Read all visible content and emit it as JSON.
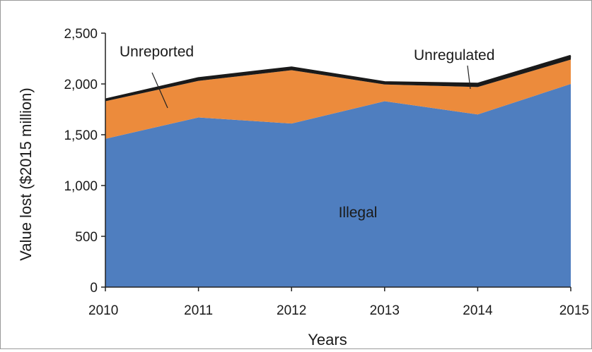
{
  "chart_data": {
    "type": "area",
    "stacked": true,
    "x": [
      2010,
      2011,
      2012,
      2013,
      2014,
      2015
    ],
    "series": [
      {
        "name": "Illegal",
        "color": "#4f7ebf",
        "values": [
          1460,
          1670,
          1610,
          1830,
          1700,
          2000
        ]
      },
      {
        "name": "Unreported",
        "color": "#ec8b3c",
        "values": [
          370,
          360,
          525,
          165,
          270,
          240
        ]
      },
      {
        "name": "Unregulated",
        "color": "#1a1a1a",
        "values": [
          15,
          25,
          25,
          20,
          30,
          35
        ]
      }
    ],
    "xlabel": "Years",
    "ylabel": "Value lost ($2015 million)",
    "ylim": [
      0,
      2500
    ],
    "yticks": [
      0,
      500,
      1000,
      1500,
      2000,
      2500
    ],
    "ytick_labels": [
      "0",
      "500",
      "1,000",
      "1,500",
      "2,000",
      "2,500"
    ],
    "xtick_labels": [
      "2010",
      "2011",
      "2012",
      "2013",
      "2014",
      "2015"
    ],
    "grid": false,
    "annotations": [
      {
        "text": "Unreported",
        "series": "Unreported",
        "callout": true
      },
      {
        "text": "Unregulated",
        "series": "Unregulated",
        "callout": true
      },
      {
        "text": "Illegal",
        "series": "Illegal",
        "callout": false
      }
    ]
  }
}
